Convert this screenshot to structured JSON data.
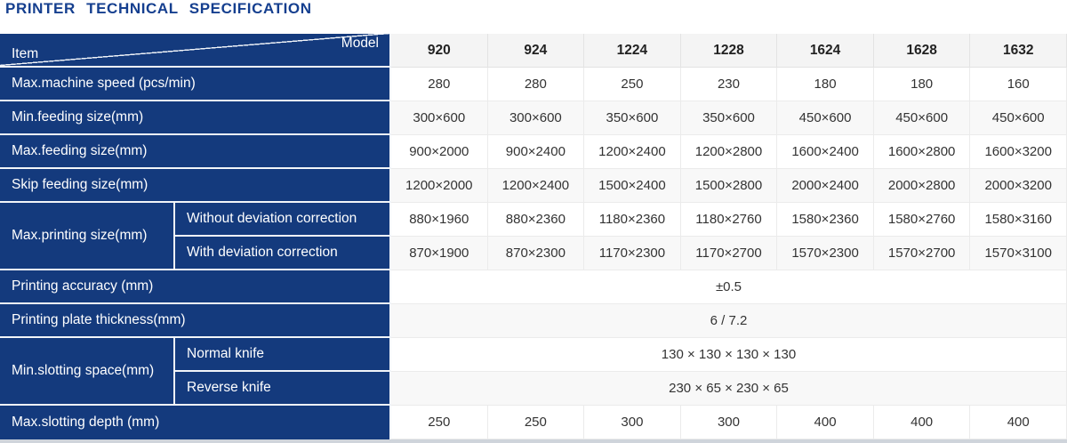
{
  "title": "PRINTER TECHNICAL SPECIFICATION",
  "colors": {
    "navy_cell": "#143a7d",
    "title_blue": "#153f8f",
    "divider_light": "#f2f5f9",
    "bottom_strip": "#cfd4db"
  },
  "table": {
    "corner": {
      "item": "Item",
      "model": "Model"
    },
    "models": [
      "920",
      "924",
      "1224",
      "1228",
      "1624",
      "1628",
      "1632"
    ],
    "rows": [
      {
        "label": "Max.machine speed (pcs/min)",
        "values": [
          "280",
          "280",
          "250",
          "230",
          "180",
          "180",
          "160"
        ]
      },
      {
        "label": "Min.feeding size(mm)",
        "values": [
          "300×600",
          "300×600",
          "350×600",
          "350×600",
          "450×600",
          "450×600",
          "450×600"
        ]
      },
      {
        "label": "Max.feeding size(mm)",
        "values": [
          "900×2000",
          "900×2400",
          "1200×2400",
          "1200×2800",
          "1600×2400",
          "1600×2800",
          "1600×3200"
        ]
      },
      {
        "label": "Skip feeding size(mm)",
        "values": [
          "1200×2000",
          "1200×2400",
          "1500×2400",
          "1500×2800",
          "2000×2400",
          "2000×2800",
          "2000×3200"
        ]
      },
      {
        "label": "Max.printing size(mm)",
        "sublabel": "Without deviation correction",
        "values": [
          "880×1960",
          "880×2360",
          "1180×2360",
          "1180×2760",
          "1580×2360",
          "1580×2760",
          "1580×3160"
        ]
      },
      {
        "sublabel": "With deviation correction",
        "values": [
          "870×1900",
          "870×2300",
          "1170×2300",
          "1170×2700",
          "1570×2300",
          "1570×2700",
          "1570×3100"
        ]
      },
      {
        "label": "Printing accuracy (mm)",
        "span_value": "±0.5"
      },
      {
        "label": "Printing plate thickness(mm)",
        "span_value": "6 / 7.2"
      },
      {
        "label": "Min.slotting space(mm)",
        "sublabel": "Normal knife",
        "span_value": "130 × 130 × 130 × 130"
      },
      {
        "sublabel": "Reverse knife",
        "span_value": "230 × 65 × 230 × 65"
      },
      {
        "label": "Max.slotting depth (mm)",
        "values": [
          "250",
          "250",
          "300",
          "300",
          "400",
          "400",
          "400"
        ]
      }
    ]
  }
}
